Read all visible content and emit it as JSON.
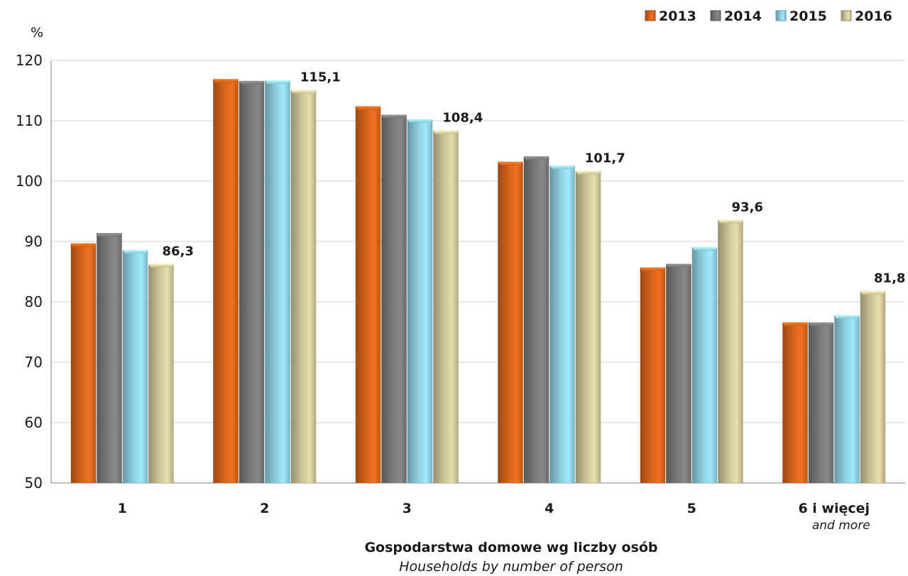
{
  "chart_data": {
    "type": "bar",
    "y_unit": "%",
    "ylim": [
      50,
      120
    ],
    "y_ticks": [
      50,
      60,
      70,
      80,
      90,
      100,
      110,
      120
    ],
    "grid": true,
    "legend_position": "top-right",
    "categories": [
      "1",
      "2",
      "3",
      "4",
      "5",
      "6 i więcej"
    ],
    "category_sublabels": [
      "",
      "",
      "",
      "",
      "",
      "and more"
    ],
    "xlabel": "Gospodarstwa domowe wg liczby osób",
    "xlabel_en": "Households by number of person",
    "series": [
      {
        "name": "2013",
        "color": "#d8641c",
        "values": [
          89.7,
          116.9,
          112.4,
          103.2,
          85.7,
          76.6
        ]
      },
      {
        "name": "2014",
        "color": "#7a7a7a",
        "values": [
          91.4,
          116.6,
          111.0,
          104.1,
          86.3,
          76.6
        ]
      },
      {
        "name": "2015",
        "color": "#8fd0e2",
        "values": [
          88.6,
          116.7,
          110.3,
          102.6,
          89.1,
          77.8
        ]
      },
      {
        "name": "2016",
        "color": "#cfc59a",
        "values": [
          86.3,
          115.1,
          108.4,
          101.7,
          93.6,
          81.8
        ]
      }
    ],
    "data_labels": {
      "series": "2016",
      "texts": [
        "86,3",
        "115,1",
        "108,4",
        "101,7",
        "93,6",
        "81,8"
      ]
    }
  }
}
